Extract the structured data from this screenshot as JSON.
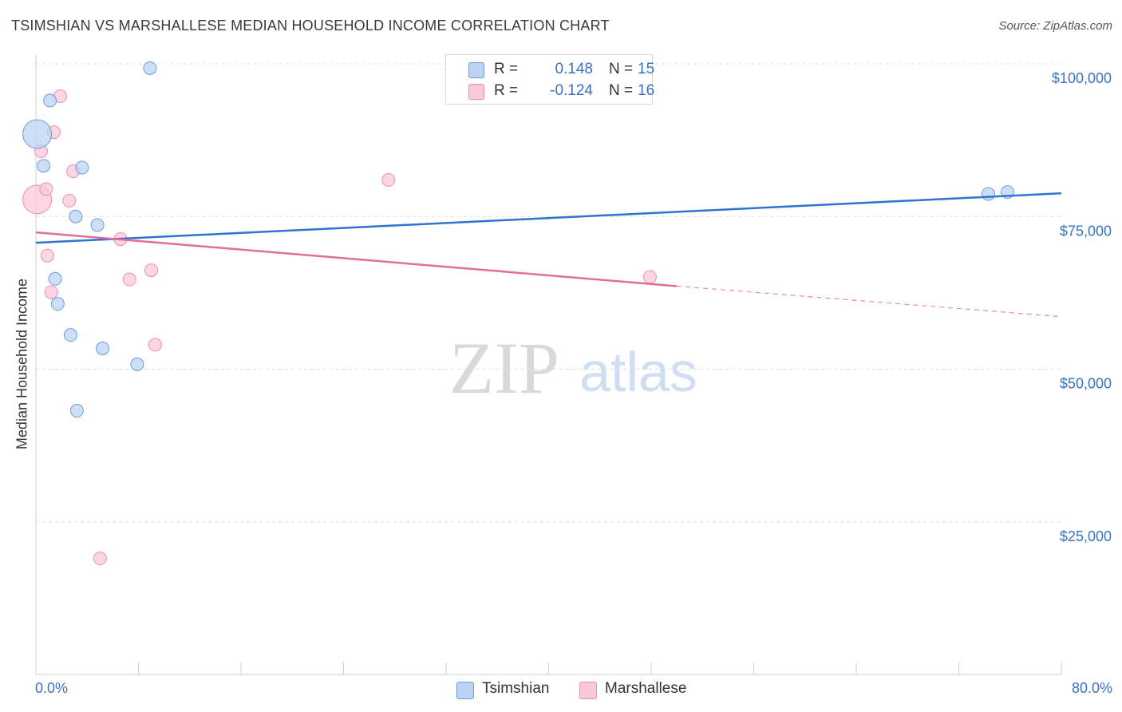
{
  "title": "TSIMSHIAN VS MARSHALLESE MEDIAN HOUSEHOLD INCOME CORRELATION CHART",
  "source": "Source: ZipAtlas.com",
  "watermark": {
    "zip": "ZIP",
    "atlas": "atlas"
  },
  "legend": {
    "row1": {
      "r_label": "R =",
      "r_value": "0.148",
      "n_label": "N =",
      "n_value": "15"
    },
    "row2": {
      "r_label": "R =",
      "r_value": "-0.124",
      "n_label": "N =",
      "n_value": "16"
    }
  },
  "colors": {
    "tsimshian_fill": "#bcd4f3",
    "tsimshian_edge": "#6f9bd8",
    "tsimshian_line": "#2e74d0",
    "marshallese_fill": "#fbc8d8",
    "marshallese_edge": "#e891ad",
    "marshallese_line": "#e26e99",
    "axis_label": "#3a73c4",
    "grid": "#dddddd"
  },
  "chart_data": {
    "type": "scatter",
    "title": "TSIMSHIAN VS MARSHALLESE MEDIAN HOUSEHOLD INCOME CORRELATION CHART",
    "xlabel": "",
    "ylabel": "Median Household Income",
    "xlim": [
      0,
      80
    ],
    "ylim": [
      0,
      105000
    ],
    "x_tick_labels": {
      "min": "0.0%",
      "max": "80.0%"
    },
    "y_ticks": [
      {
        "value": 100000,
        "label": "$100,000"
      },
      {
        "value": 75000,
        "label": "$75,000"
      },
      {
        "value": 50000,
        "label": "$50,000"
      },
      {
        "value": 25000,
        "label": "$25,000"
      }
    ],
    "grid": true,
    "legend_position": "top-center",
    "series": [
      {
        "name": "Tsimshian",
        "r": 0.148,
        "n": 15,
        "points": [
          {
            "x": 0.1,
            "y": 88500,
            "large": true
          },
          {
            "x": 0.6,
            "y": 83300
          },
          {
            "x": 1.1,
            "y": 94000
          },
          {
            "x": 3.6,
            "y": 83000
          },
          {
            "x": 3.1,
            "y": 75000
          },
          {
            "x": 4.8,
            "y": 73600
          },
          {
            "x": 1.5,
            "y": 64800
          },
          {
            "x": 1.7,
            "y": 60700
          },
          {
            "x": 2.7,
            "y": 55600
          },
          {
            "x": 5.2,
            "y": 53400
          },
          {
            "x": 7.9,
            "y": 50800
          },
          {
            "x": 3.2,
            "y": 43200
          },
          {
            "x": 8.9,
            "y": 99300
          },
          {
            "x": 74.3,
            "y": 78700
          },
          {
            "x": 75.8,
            "y": 79000
          }
        ],
        "trend": {
          "x0": 0,
          "y0": 70700,
          "x1": 80,
          "y1": 78800
        }
      },
      {
        "name": "Marshallese",
        "r": -0.124,
        "n": 16,
        "points": [
          {
            "x": 0.1,
            "y": 77800,
            "large": true
          },
          {
            "x": 0.4,
            "y": 85700
          },
          {
            "x": 0.8,
            "y": 79500
          },
          {
            "x": 1.4,
            "y": 88800
          },
          {
            "x": 1.9,
            "y": 94700
          },
          {
            "x": 2.9,
            "y": 82400
          },
          {
            "x": 2.6,
            "y": 77600
          },
          {
            "x": 0.9,
            "y": 68600
          },
          {
            "x": 1.2,
            "y": 62600
          },
          {
            "x": 6.6,
            "y": 71300
          },
          {
            "x": 7.3,
            "y": 64700
          },
          {
            "x": 9.0,
            "y": 66200
          },
          {
            "x": 9.3,
            "y": 54000
          },
          {
            "x": 27.5,
            "y": 81000
          },
          {
            "x": 47.9,
            "y": 65100
          },
          {
            "x": 5.0,
            "y": 19000
          }
        ],
        "trend": {
          "x0": 0,
          "y0": 72400,
          "x1": 50,
          "y1": 63600,
          "dashed_to_x": 80,
          "dashed_to_y": 58600
        }
      }
    ]
  }
}
